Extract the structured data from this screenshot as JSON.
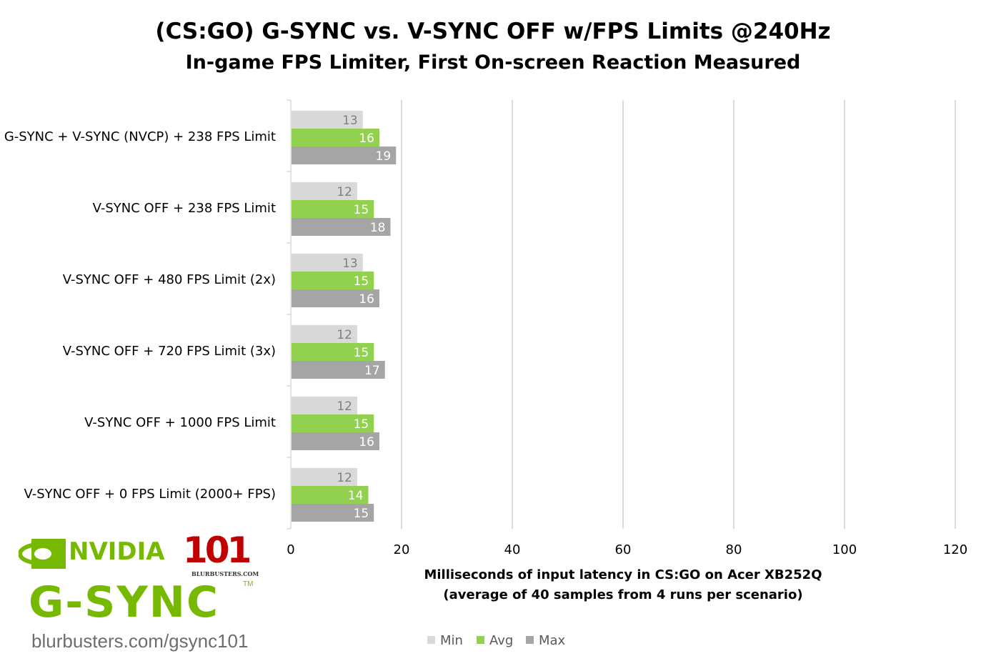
{
  "chart_data": {
    "type": "bar",
    "orientation": "horizontal",
    "title": "(CS:GO) G-SYNC vs. V-SYNC OFF w/FPS Limits @240Hz",
    "subtitle": "In-game FPS Limiter, First On-screen Reaction Measured",
    "categories": [
      "G-SYNC + V-SYNC (NVCP) + 238 FPS Limit",
      "V-SYNC OFF + 238 FPS Limit",
      "V-SYNC OFF + 480 FPS Limit (2x)",
      "V-SYNC OFF + 720 FPS Limit (3x)",
      "V-SYNC OFF + 1000 FPS Limit",
      "V-SYNC OFF + 0 FPS Limit (2000+ FPS)"
    ],
    "series": [
      {
        "name": "Min",
        "color": "#d9d9d9",
        "label_color": "#7f7f7f",
        "values": [
          13,
          12,
          13,
          12,
          12,
          12
        ]
      },
      {
        "name": "Avg",
        "color": "#92d050",
        "label_color": "#ffffff",
        "values": [
          16,
          15,
          15,
          15,
          15,
          14
        ]
      },
      {
        "name": "Max",
        "color": "#a5a5a5",
        "label_color": "#ffffff",
        "values": [
          19,
          18,
          16,
          17,
          16,
          15
        ]
      }
    ],
    "xlabel": "Milliseconds of input latency in CS:GO on Acer XB252Q",
    "xlabel2": "(average of 40 samples from 4 runs per scenario)",
    "xlim": [
      0,
      120
    ],
    "xticks": [
      "0",
      "20",
      "40",
      "60",
      "80",
      "100",
      "120"
    ],
    "grid": true,
    "legend": "bottom"
  },
  "logo": {
    "nvidia": "NVIDIA",
    "number": "101",
    "site": "BLURBUSTERS.COM",
    "gsync": "G-SYNC",
    "tm": "TM",
    "url": "blurbusters.com/gsync101"
  }
}
